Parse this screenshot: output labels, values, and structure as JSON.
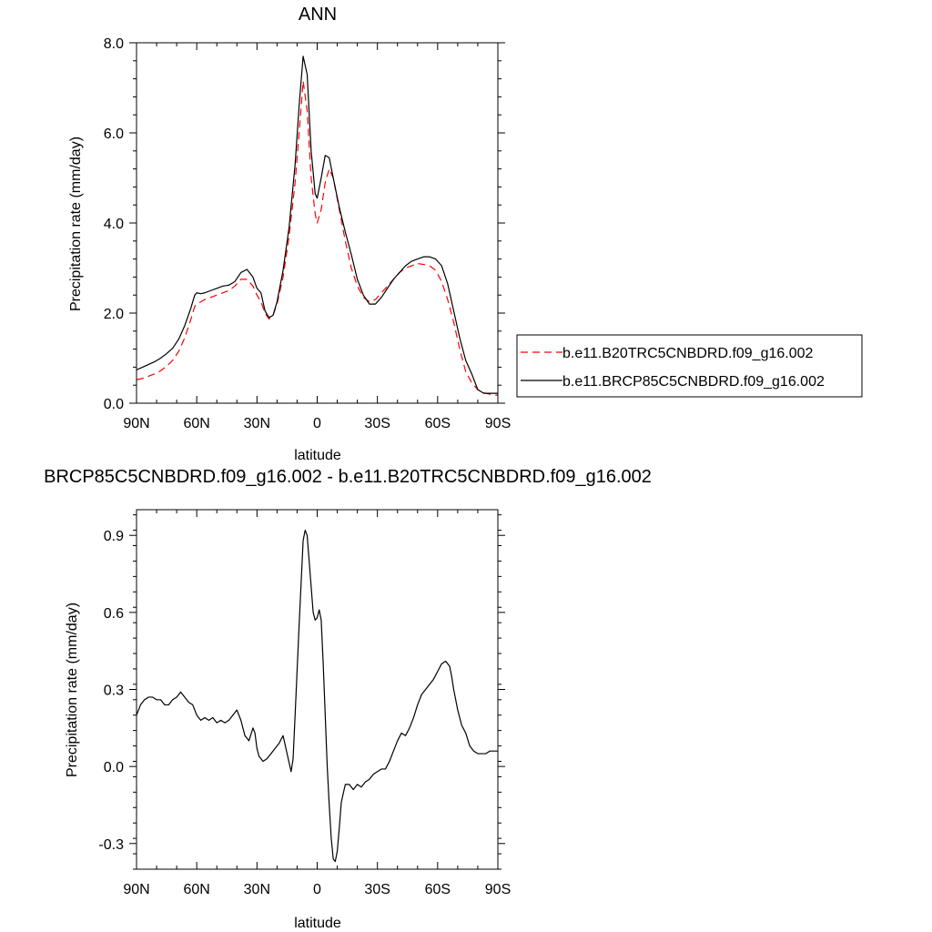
{
  "chart_data": [
    {
      "type": "line",
      "title": "ANN",
      "xlabel": "latitude",
      "ylabel": "Precipitation rate (mm/day)",
      "xlim": [
        90,
        -90
      ],
      "ylim": [
        0,
        8
      ],
      "x_ticks": [
        90,
        60,
        30,
        0,
        -30,
        -60,
        -90
      ],
      "x_tick_labels": [
        "90N",
        "60N",
        "30N",
        "0",
        "30S",
        "60S",
        "90S"
      ],
      "y_ticks": [
        0,
        2,
        4,
        6,
        8
      ],
      "y_tick_labels": [
        "0.0",
        "2.0",
        "4.0",
        "6.0",
        "8.0"
      ],
      "grid": false,
      "legend_position": "right",
      "series": [
        {
          "name": "b.e11.B20TRC5CNBDRD.f09_g16.002",
          "color": "#ff0000",
          "dash": "dashed",
          "x": [
            90,
            87,
            84,
            81,
            78,
            75,
            72,
            69,
            66,
            63,
            61,
            60,
            58,
            56,
            53,
            50,
            47,
            44,
            41,
            38,
            35,
            32,
            30,
            28,
            26,
            24,
            22,
            20,
            17,
            14,
            11,
            9,
            7,
            5,
            3,
            1,
            0,
            -2,
            -4,
            -6,
            -8,
            -11,
            -14,
            -17,
            -20,
            -23,
            -26,
            -29,
            -32,
            -35,
            -38,
            -41,
            -44,
            -47,
            -50,
            -53,
            -56,
            -59,
            -62,
            -65,
            -68,
            -71,
            -74,
            -77,
            -80,
            -83,
            -86,
            -89,
            -90
          ],
          "values": [
            0.52,
            0.55,
            0.6,
            0.65,
            0.72,
            0.82,
            0.95,
            1.15,
            1.45,
            1.85,
            2.15,
            2.2,
            2.25,
            2.3,
            2.35,
            2.4,
            2.45,
            2.5,
            2.6,
            2.75,
            2.75,
            2.6,
            2.4,
            2.25,
            2.0,
            1.87,
            1.95,
            2.2,
            2.8,
            3.7,
            4.9,
            6.0,
            7.15,
            6.5,
            5.0,
            4.2,
            4.0,
            4.3,
            4.9,
            5.2,
            5.0,
            4.3,
            3.6,
            3.0,
            2.6,
            2.35,
            2.25,
            2.3,
            2.45,
            2.6,
            2.75,
            2.9,
            3.0,
            3.05,
            3.1,
            3.08,
            3.05,
            2.95,
            2.7,
            2.3,
            1.8,
            1.2,
            0.7,
            0.45,
            0.3,
            0.23,
            0.2,
            0.18,
            0.18
          ]
        },
        {
          "name": "b.e11.BRCP85C5CNBDRD.f09_g16.002",
          "color": "#000000",
          "dash": "solid",
          "x": [
            90,
            87,
            84,
            81,
            78,
            75,
            72,
            69,
            66,
            63,
            61,
            60,
            58,
            56,
            53,
            50,
            47,
            44,
            41,
            38,
            35,
            32,
            30,
            28,
            26,
            24,
            22,
            20,
            17,
            14,
            11,
            9,
            7,
            5,
            3,
            1,
            0,
            -2,
            -4,
            -6,
            -8,
            -11,
            -14,
            -17,
            -20,
            -23,
            -26,
            -29,
            -32,
            -35,
            -38,
            -41,
            -44,
            -47,
            -50,
            -53,
            -56,
            -59,
            -62,
            -65,
            -68,
            -71,
            -74,
            -77,
            -80,
            -83,
            -86,
            -89,
            -90
          ],
          "values": [
            0.74,
            0.8,
            0.86,
            0.92,
            1.0,
            1.1,
            1.22,
            1.42,
            1.72,
            2.1,
            2.4,
            2.45,
            2.43,
            2.45,
            2.5,
            2.55,
            2.6,
            2.62,
            2.7,
            2.9,
            2.97,
            2.8,
            2.55,
            2.45,
            2.05,
            1.9,
            1.95,
            2.25,
            2.95,
            3.9,
            5.3,
            6.6,
            7.7,
            7.3,
            5.6,
            4.65,
            4.55,
            5.0,
            5.5,
            5.45,
            5.0,
            4.35,
            3.8,
            3.3,
            2.75,
            2.4,
            2.2,
            2.2,
            2.35,
            2.55,
            2.75,
            2.9,
            3.05,
            3.15,
            3.2,
            3.25,
            3.25,
            3.2,
            3.05,
            2.65,
            2.05,
            1.45,
            0.95,
            0.65,
            0.3,
            0.22,
            0.22,
            0.22,
            0.22
          ]
        }
      ]
    },
    {
      "type": "line",
      "title": "BRCP85C5CNBDRD.f09_g16.002 - b.e11.B20TRC5CNBDRD.f09_g16.002",
      "xlabel": "latitude",
      "ylabel": "Precipitation rate (mm/day)",
      "xlim": [
        90,
        -90
      ],
      "ylim": [
        -0.4,
        1.0
      ],
      "x_ticks": [
        90,
        60,
        30,
        0,
        -30,
        -60,
        -90
      ],
      "x_tick_labels": [
        "90N",
        "60N",
        "30N",
        "0",
        "30S",
        "60S",
        "90S"
      ],
      "y_ticks": [
        -0.3,
        0,
        0.3,
        0.6,
        0.9
      ],
      "y_tick_labels": [
        "-0.3",
        "0.0",
        "0.3",
        "0.6",
        "0.9"
      ],
      "grid": false,
      "series": [
        {
          "color": "#000000",
          "dash": "solid",
          "x": [
            90,
            88,
            86,
            84,
            82,
            80,
            78,
            76,
            74,
            72,
            70,
            68,
            66,
            64,
            62,
            60,
            58,
            56,
            54,
            52,
            50,
            48,
            46,
            44,
            42,
            40,
            38,
            36,
            34,
            32,
            31,
            30,
            29,
            28,
            27,
            25,
            23,
            21,
            19,
            17,
            15,
            13,
            12,
            11,
            9,
            7,
            6,
            5,
            4,
            3,
            2,
            1,
            0,
            -1,
            -2,
            -3,
            -4,
            -5,
            -6,
            -7,
            -8,
            -9,
            -10,
            -11,
            -12,
            -14,
            -16,
            -18,
            -20,
            -22,
            -24,
            -26,
            -28,
            -30,
            -32,
            -34,
            -36,
            -38,
            -40,
            -42,
            -44,
            -46,
            -48,
            -50,
            -52,
            -54,
            -56,
            -58,
            -60,
            -62,
            -64,
            -65,
            -66,
            -67,
            -68,
            -70,
            -72,
            -74,
            -76,
            -78,
            -80,
            -82,
            -84,
            -86,
            -88,
            -90
          ],
          "values": [
            0.2,
            0.24,
            0.26,
            0.27,
            0.27,
            0.26,
            0.26,
            0.24,
            0.24,
            0.26,
            0.27,
            0.29,
            0.27,
            0.25,
            0.24,
            0.2,
            0.18,
            0.19,
            0.18,
            0.19,
            0.17,
            0.18,
            0.17,
            0.18,
            0.2,
            0.22,
            0.18,
            0.12,
            0.1,
            0.15,
            0.13,
            0.07,
            0.04,
            0.03,
            0.02,
            0.03,
            0.05,
            0.07,
            0.09,
            0.12,
            0.05,
            -0.02,
            0.03,
            0.2,
            0.55,
            0.88,
            0.92,
            0.9,
            0.8,
            0.7,
            0.6,
            0.57,
            0.58,
            0.61,
            0.57,
            0.4,
            0.2,
            0.0,
            -0.15,
            -0.28,
            -0.36,
            -0.37,
            -0.33,
            -0.24,
            -0.14,
            -0.07,
            -0.07,
            -0.09,
            -0.07,
            -0.08,
            -0.06,
            -0.05,
            -0.03,
            -0.02,
            -0.01,
            -0.01,
            0.02,
            0.06,
            0.1,
            0.13,
            0.12,
            0.15,
            0.19,
            0.24,
            0.28,
            0.3,
            0.32,
            0.34,
            0.37,
            0.4,
            0.41,
            0.4,
            0.39,
            0.35,
            0.3,
            0.22,
            0.16,
            0.13,
            0.08,
            0.06,
            0.05,
            0.05,
            0.05,
            0.06,
            0.06,
            0.06
          ]
        }
      ]
    }
  ]
}
